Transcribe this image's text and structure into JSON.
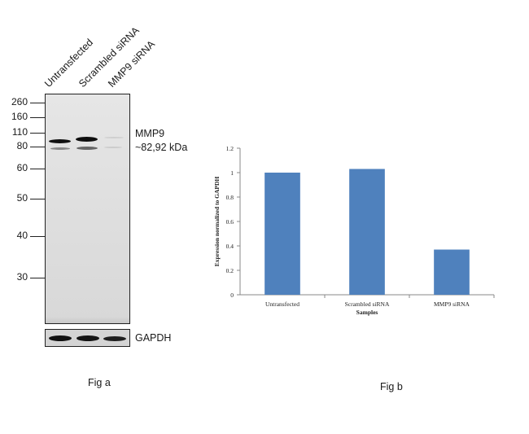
{
  "fig_a": {
    "lanes": [
      "Untransfected",
      "Scrambled siRNA",
      "MMP9 siRNA"
    ],
    "mw_markers": [
      "260",
      "160",
      "110",
      "80",
      "60",
      "50",
      "40",
      "30"
    ],
    "target_label": "MMP9",
    "target_size": "~82,92 kDa",
    "loading_control": "GAPDH",
    "caption": "Fig a"
  },
  "fig_b": {
    "caption": "Fig b"
  },
  "chart_data": {
    "type": "bar",
    "categories": [
      "Untransfected",
      "Scrambled siRNA",
      "MMP9 siRNA"
    ],
    "values": [
      1.0,
      1.03,
      0.37
    ],
    "title": "",
    "xlabel": "Samples",
    "ylabel": "Expression normalized to GAPDH",
    "ylim": [
      0,
      1.2
    ],
    "yticks": [
      "0",
      "0.2",
      "0.4",
      "0.6",
      "0.8",
      "1",
      "1.2"
    ],
    "grid": false,
    "bar_color": "#4f81bd"
  }
}
